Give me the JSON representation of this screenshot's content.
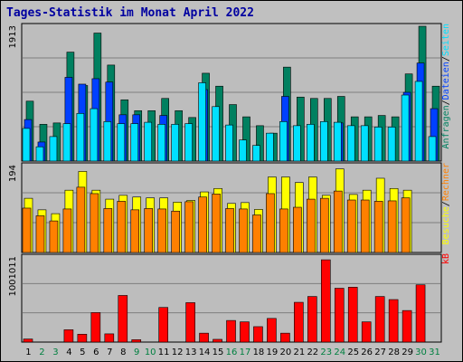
{
  "title": "Tages-Statistik im Monat April 2022",
  "colors": {
    "background": "#c0c0c0",
    "panel": "#bdbdbd",
    "grid": "#7f7f7f",
    "anfragen": "#008060",
    "dateien": "#0040ff",
    "seiten": "#00e0ff",
    "besuche": "#ffff00",
    "rechner": "#ff8000",
    "kb": "#ff0000",
    "weekday_label": "#000000",
    "weekend_label": "#008040"
  },
  "chart_data": [
    {
      "type": "bar",
      "panel": "top",
      "categories": [
        "1",
        "2",
        "3",
        "4",
        "5",
        "6",
        "7",
        "8",
        "9",
        "10",
        "11",
        "12",
        "13",
        "14",
        "15",
        "16",
        "17",
        "18",
        "19",
        "20",
        "21",
        "22",
        "23",
        "24",
        "25",
        "26",
        "27",
        "28",
        "29",
        "30",
        "31"
      ],
      "y_tick_label": "1913",
      "y_tick_value": 1913,
      "ylim": [
        0,
        2020
      ],
      "series": [
        {
          "name": "Anfragen",
          "color": "#008060",
          "values": [
            880,
            540,
            560,
            1600,
            1110,
            1880,
            1410,
            900,
            740,
            740,
            920,
            740,
            640,
            1290,
            1100,
            830,
            650,
            520,
            410,
            1380,
            940,
            920,
            920,
            950,
            650,
            650,
            670,
            650,
            1280,
            1980,
            1100
          ]
        },
        {
          "name": "Dateien",
          "color": "#0040ff",
          "values": [
            610,
            280,
            0,
            1230,
            1130,
            1210,
            1160,
            680,
            680,
            0,
            670,
            0,
            0,
            1050,
            0,
            0,
            0,
            0,
            0,
            950,
            0,
            0,
            0,
            560,
            0,
            0,
            0,
            0,
            1010,
            1440,
            770
          ]
        },
        {
          "name": "Seiten",
          "color": "#00e0ff",
          "values": [
            480,
            210,
            360,
            550,
            700,
            770,
            580,
            550,
            550,
            570,
            540,
            540,
            550,
            1150,
            800,
            530,
            310,
            230,
            410,
            580,
            520,
            540,
            580,
            570,
            520,
            520,
            500,
            500,
            970,
            1170,
            360
          ]
        }
      ]
    },
    {
      "type": "bar",
      "panel": "middle",
      "categories": [
        "1",
        "2",
        "3",
        "4",
        "5",
        "6",
        "7",
        "8",
        "9",
        "10",
        "11",
        "12",
        "13",
        "14",
        "15",
        "16",
        "17",
        "18",
        "19",
        "20",
        "21",
        "22",
        "23",
        "24",
        "25",
        "26",
        "27",
        "28",
        "29",
        "30",
        "31"
      ],
      "y_tick_label": "194",
      "y_tick_value": 194,
      "ylim": [
        0,
        210
      ],
      "series": [
        {
          "name": "Besuche",
          "color": "#ffff00",
          "values": [
            127,
            100,
            91,
            146,
            190,
            146,
            125,
            134,
            130,
            128,
            128,
            118,
            122,
            142,
            150,
            115,
            117,
            101,
            177,
            177,
            164,
            177,
            134,
            196,
            136,
            146,
            174,
            150,
            146,
            0,
            0
          ]
        },
        {
          "name": "Rechner",
          "color": "#ff8000",
          "values": [
            104,
            86,
            74,
            102,
            153,
            138,
            103,
            120,
            100,
            103,
            102,
            97,
            119,
            130,
            137,
            103,
            102,
            88,
            138,
            102,
            106,
            125,
            127,
            144,
            123,
            123,
            120,
            121,
            128,
            0,
            0
          ]
        }
      ]
    },
    {
      "type": "bar",
      "panel": "bottom",
      "categories": [
        "1",
        "2",
        "3",
        "4",
        "5",
        "6",
        "7",
        "8",
        "9",
        "10",
        "11",
        "12",
        "13",
        "14",
        "15",
        "16",
        "17",
        "18",
        "19",
        "20",
        "21",
        "22",
        "23",
        "24",
        "25",
        "26",
        "27",
        "28",
        "29",
        "30",
        "31"
      ],
      "y_tick_label": "1001011",
      "y_tick_value": 1001011,
      "ylim": [
        0,
        1280000
      ],
      "series": [
        {
          "name": "kB",
          "color": "#ff0000",
          "values": [
            45000,
            0,
            0,
            180000,
            115000,
            430000,
            120000,
            680000,
            35000,
            0,
            505000,
            0,
            575000,
            130000,
            40000,
            315000,
            295000,
            225000,
            345000,
            130000,
            580000,
            665000,
            1200000,
            785000,
            800000,
            295000,
            665000,
            620000,
            460000,
            835000,
            0
          ]
        }
      ]
    }
  ],
  "x_labels": [
    {
      "text": "1",
      "weekend": false
    },
    {
      "text": "2",
      "weekend": true
    },
    {
      "text": "3",
      "weekend": true
    },
    {
      "text": "4",
      "weekend": false
    },
    {
      "text": "5",
      "weekend": false
    },
    {
      "text": "6",
      "weekend": false
    },
    {
      "text": "7",
      "weekend": false
    },
    {
      "text": "8",
      "weekend": false
    },
    {
      "text": "9",
      "weekend": true
    },
    {
      "text": "10",
      "weekend": true
    },
    {
      "text": "11",
      "weekend": false
    },
    {
      "text": "12",
      "weekend": false
    },
    {
      "text": "13",
      "weekend": false
    },
    {
      "text": "14",
      "weekend": false
    },
    {
      "text": "15",
      "weekend": false
    },
    {
      "text": "16",
      "weekend": true
    },
    {
      "text": "17",
      "weekend": true
    },
    {
      "text": "18",
      "weekend": false
    },
    {
      "text": "19",
      "weekend": false
    },
    {
      "text": "20",
      "weekend": false
    },
    {
      "text": "21",
      "weekend": false
    },
    {
      "text": "22",
      "weekend": false
    },
    {
      "text": "23",
      "weekend": true
    },
    {
      "text": "24",
      "weekend": true
    },
    {
      "text": "25",
      "weekend": false
    },
    {
      "text": "26",
      "weekend": false
    },
    {
      "text": "27",
      "weekend": false
    },
    {
      "text": "28",
      "weekend": false
    },
    {
      "text": "29",
      "weekend": false
    },
    {
      "text": "30",
      "weekend": true
    },
    {
      "text": "31",
      "weekend": true
    }
  ],
  "legend_top": [
    {
      "text": "Anfragen",
      "color": "#008060"
    },
    {
      "text": "/",
      "color": "#000000"
    },
    {
      "text": "Dateien",
      "color": "#0040ff"
    },
    {
      "text": "/",
      "color": "#000000"
    },
    {
      "text": "Seiten",
      "color": "#00e0ff"
    }
  ],
  "legend_middle": [
    {
      "text": "Besuche",
      "color": "#ffff00"
    },
    {
      "text": "/",
      "color": "#000000"
    },
    {
      "text": "Rechner",
      "color": "#ff8000"
    }
  ],
  "legend_bottom": [
    {
      "text": "kB",
      "color": "#ff0000"
    }
  ]
}
